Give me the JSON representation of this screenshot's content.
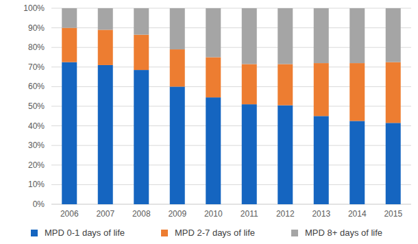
{
  "chart_data": {
    "type": "bar",
    "stacked": true,
    "grid": true,
    "legend": "bottom",
    "categories": [
      "2006",
      "2007",
      "2008",
      "2009",
      "2010",
      "2011",
      "2012",
      "2013",
      "2014",
      "2015"
    ],
    "series": [
      {
        "name": "MPD 0-1 days of life",
        "color": "#1565c0",
        "values": [
          72.5,
          71,
          68.5,
          60,
          54.5,
          51,
          50.5,
          45,
          42.5,
          41.5
        ]
      },
      {
        "name": "MPD 2-7 days of life",
        "color": "#ed7d31",
        "values": [
          17.5,
          18,
          18,
          19,
          20.5,
          20.5,
          21,
          27,
          29.5,
          31
        ]
      },
      {
        "name": "MPD 8+ days of life",
        "color": "#a5a5a5",
        "values": [
          10,
          11,
          13.5,
          21,
          25,
          28.5,
          28.5,
          28,
          28,
          27.5
        ]
      }
    ],
    "ylim": [
      0,
      100
    ],
    "yticks": [
      {
        "value": 0,
        "label": "0%"
      },
      {
        "value": 10,
        "label": "10%"
      },
      {
        "value": 20,
        "label": "20%"
      },
      {
        "value": 30,
        "label": "30%"
      },
      {
        "value": 40,
        "label": "40%"
      },
      {
        "value": 50,
        "label": "50%"
      },
      {
        "value": 60,
        "label": "60%"
      },
      {
        "value": 70,
        "label": "70%"
      },
      {
        "value": 80,
        "label": "80%"
      },
      {
        "value": 90,
        "label": "90%"
      },
      {
        "value": 100,
        "label": "100%"
      }
    ]
  }
}
